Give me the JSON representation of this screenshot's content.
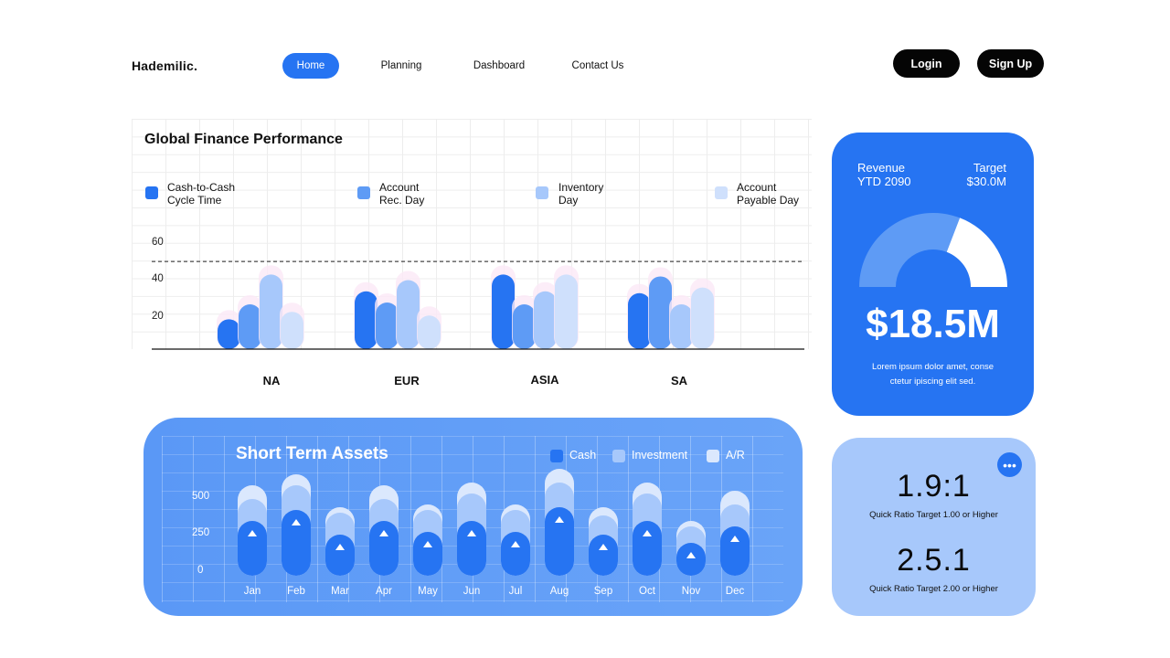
{
  "nav": {
    "brand": "Hademilic.",
    "items": [
      {
        "label": "Home",
        "active": true
      },
      {
        "label": "Planning",
        "active": false
      },
      {
        "label": "Dashboard",
        "active": false
      },
      {
        "label": "Contact Us",
        "active": false
      }
    ],
    "login_label": "Login",
    "signup_label": "Sign Up"
  },
  "finance": {
    "title": "Global Finance Performance",
    "legend": [
      {
        "line1": "Cash-to-Cash",
        "line2": "Cycle Time",
        "color": "#2674f2"
      },
      {
        "line1": "Account",
        "line2": "Rec. Day",
        "color": "#5e9bf5"
      },
      {
        "line1": "Inventory",
        "line2": "Day",
        "color": "#a7c8fb"
      },
      {
        "line1": "Account",
        "line2": "Payable Day",
        "color": "#cfe0fc"
      }
    ],
    "yticks": [
      "60",
      "40",
      "20"
    ]
  },
  "chart_data": [
    {
      "type": "bar",
      "title": "Global Finance Performance",
      "categories": [
        "NA",
        "EUR",
        "ASIA",
        "SA"
      ],
      "series": [
        {
          "name": "Cash-to-Cash Cycle Time",
          "values": [
            16,
            31,
            40,
            30
          ],
          "color": "#2674f2"
        },
        {
          "name": "Account Rec. Day",
          "values": [
            24,
            25,
            24,
            39
          ],
          "color": "#5e9bf5"
        },
        {
          "name": "Inventory Day",
          "values": [
            40,
            37,
            31,
            24
          ],
          "color": "#a7c8fb"
        },
        {
          "name": "Account Payable Day",
          "values": [
            20,
            18,
            40,
            33
          ],
          "color": "#cfe0fc"
        }
      ],
      "ylim": [
        0,
        68
      ],
      "reference_line": 47,
      "grid": true
    },
    {
      "type": "bar",
      "title": "Short Term Assets",
      "categories": [
        "Jan",
        "Feb",
        "Mar",
        "Apr",
        "May",
        "Jun",
        "Jul",
        "Aug",
        "Sep",
        "Oct",
        "Nov",
        "Dec"
      ],
      "series": [
        {
          "name": "Cash",
          "values": [
            200,
            240,
            150,
            200,
            160,
            200,
            160,
            250,
            150,
            200,
            120,
            180
          ],
          "color": "#2674f2"
        },
        {
          "name": "Investment",
          "values": [
            280,
            330,
            230,
            280,
            240,
            300,
            240,
            340,
            220,
            300,
            180,
            260
          ],
          "color": "#a7c8fb"
        },
        {
          "name": "A/R",
          "values": [
            330,
            370,
            250,
            330,
            260,
            340,
            260,
            390,
            250,
            340,
            200,
            310
          ],
          "color": "#dbe8fd"
        }
      ],
      "ylim": [
        0,
        500
      ]
    }
  ],
  "revenue": {
    "label1": "Revenue",
    "label2": "YTD 2090",
    "target1": "Target",
    "target2": "$30.0M",
    "progress": 0.617,
    "value": "$18.5M",
    "note1": "Lorem ipsum dolor amet, conse",
    "note2": "ctetur ipiscing elit sed."
  },
  "assets": {
    "title": "Short Term Assets",
    "legend": [
      {
        "label": "Cash",
        "color": "#2674f2"
      },
      {
        "label": "Investment",
        "color": "#a7c8fb"
      },
      {
        "label": "A/R",
        "color": "#dbe8fd"
      }
    ],
    "yticks": [
      "500",
      "250",
      "0"
    ]
  },
  "ratios": {
    "items": [
      {
        "value": "1.9:1",
        "note": "Quick Ratio Target 1.00 or Higher"
      },
      {
        "value": "2.5.1",
        "note": "Quick Ratio Target 2.00 or Higher"
      }
    ],
    "more_icon": "more-horizontal-icon"
  }
}
